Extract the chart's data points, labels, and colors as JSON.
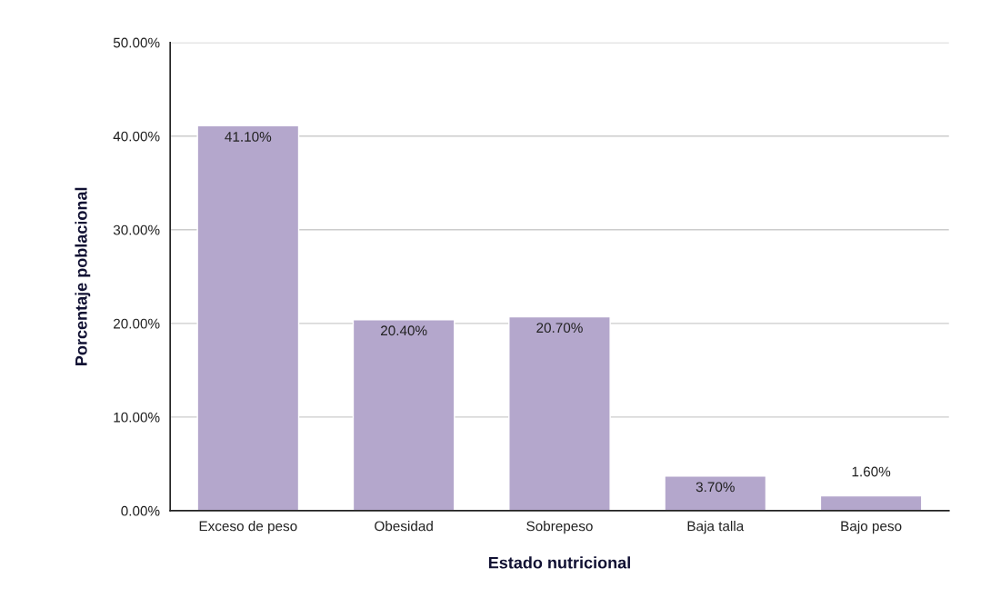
{
  "chart_data": {
    "type": "bar",
    "xlabel": "Estado nutricional",
    "ylabel": "Porcentaje poblacional",
    "categories": [
      "Exceso de peso",
      "Obesidad",
      "Sobrepeso",
      "Baja talla",
      "Bajo peso"
    ],
    "values": [
      41.1,
      20.4,
      20.7,
      3.7,
      1.6
    ],
    "value_labels": [
      "41.10%",
      "20.40%",
      "20.70%",
      "3.70%",
      "1.60%"
    ],
    "color": "#b4a7cc",
    "ylim": [
      0,
      50
    ],
    "yticks": [
      {
        "value": 0,
        "label": "0.00%"
      },
      {
        "value": 10,
        "label": "10.00%"
      },
      {
        "value": 20,
        "label": "20.00%"
      },
      {
        "value": 30,
        "label": "30.00%"
      },
      {
        "value": 40,
        "label": "40.00%"
      },
      {
        "value": 50,
        "label": "50.00%"
      }
    ],
    "grid": "y",
    "legend": false
  }
}
